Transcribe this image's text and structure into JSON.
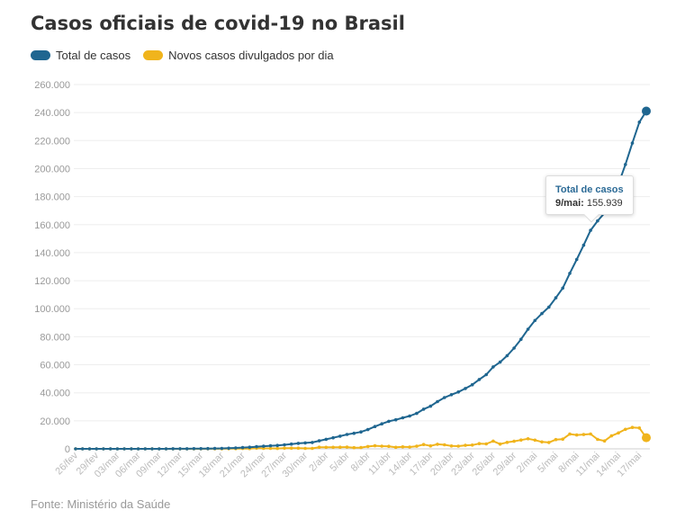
{
  "title": "Casos oficiais de covid-19 no Brasil",
  "source": "Fonte: Ministério da Saúde",
  "colors": {
    "total": "#1f6690",
    "novos": "#f0b41c"
  },
  "tooltip": {
    "series": "Total de casos",
    "date_label": "9/mai:",
    "value": "155.939"
  },
  "chart_data": {
    "type": "line",
    "title": "Casos oficiais de covid-19 no Brasil",
    "xlabel": "",
    "ylabel": "",
    "ylim": [
      0,
      260000
    ],
    "yticks": [
      0,
      20000,
      40000,
      60000,
      80000,
      100000,
      120000,
      140000,
      160000,
      180000,
      200000,
      220000,
      240000,
      260000
    ],
    "ytick_labels": [
      "0",
      "20.000",
      "40.000",
      "60.000",
      "80.000",
      "100.000",
      "120.000",
      "140.000",
      "160.000",
      "180.000",
      "200.000",
      "220.000",
      "240.000",
      "260.000"
    ],
    "grid": true,
    "legend": "top-left",
    "x_tick_labels": [
      "26/fev",
      "29/fev",
      "03/mar",
      "06/mar",
      "09/mar",
      "12/mar",
      "15/mar",
      "18/mar",
      "21/mar",
      "24/mar",
      "27/mar",
      "30/mar",
      "2/abr",
      "5/abr",
      "8/abr",
      "11/abr",
      "14/abr",
      "17/abr",
      "20/abr",
      "23/abr",
      "26/abr",
      "29/abr",
      "2/mai",
      "5/mai",
      "8/mai",
      "11/mai",
      "14/mai",
      "17/mai"
    ],
    "series": [
      {
        "name": "Total de casos",
        "values": [
          1,
          1,
          1,
          1,
          2,
          2,
          2,
          3,
          3,
          4,
          8,
          13,
          19,
          25,
          34,
          52,
          77,
          98,
          121,
          200,
          234,
          291,
          428,
          621,
          904,
          1128,
          1546,
          1891,
          2201,
          2433,
          2915,
          3417,
          3904,
          4256,
          4579,
          5717,
          6836,
          7910,
          9056,
          10278,
          11130,
          12056,
          13717,
          15927,
          17857,
          19638,
          20727,
          22169,
          23430,
          25262,
          28320,
          30425,
          33682,
          36599,
          38654,
          40581,
          43079,
          45757,
          49492,
          52995,
          58509,
          61888,
          66501,
          71886,
          78162,
          85380,
          91589,
          96559,
          101147,
          107780,
          114715,
          125218,
          135106,
          145328,
          155939,
          162699,
          168331,
          177589,
          188974,
          202918,
          218223,
          233142,
          241080
        ]
      },
      {
        "name": "Novos casos divulgados por dia",
        "values": [
          1,
          0,
          0,
          0,
          1,
          0,
          0,
          1,
          0,
          1,
          4,
          5,
          6,
          6,
          9,
          18,
          25,
          21,
          23,
          79,
          34,
          57,
          137,
          193,
          283,
          224,
          418,
          345,
          310,
          232,
          482,
          502,
          487,
          352,
          323,
          1138,
          1119,
          1074,
          1146,
          1222,
          852,
          926,
          1661,
          2210,
          1930,
          1781,
          1089,
          1442,
          1261,
          1832,
          3058,
          2105,
          3257,
          2917,
          2055,
          1927,
          2498,
          2678,
          3735,
          3503,
          5514,
          3379,
          4613,
          5385,
          6276,
          7218,
          6209,
          4970,
          4588,
          6633,
          6935,
          10503,
          9888,
          10222,
          10611,
          6760,
          5632,
          9258,
          11385,
          13944,
          15305,
          14919,
          7938
        ]
      }
    ]
  }
}
